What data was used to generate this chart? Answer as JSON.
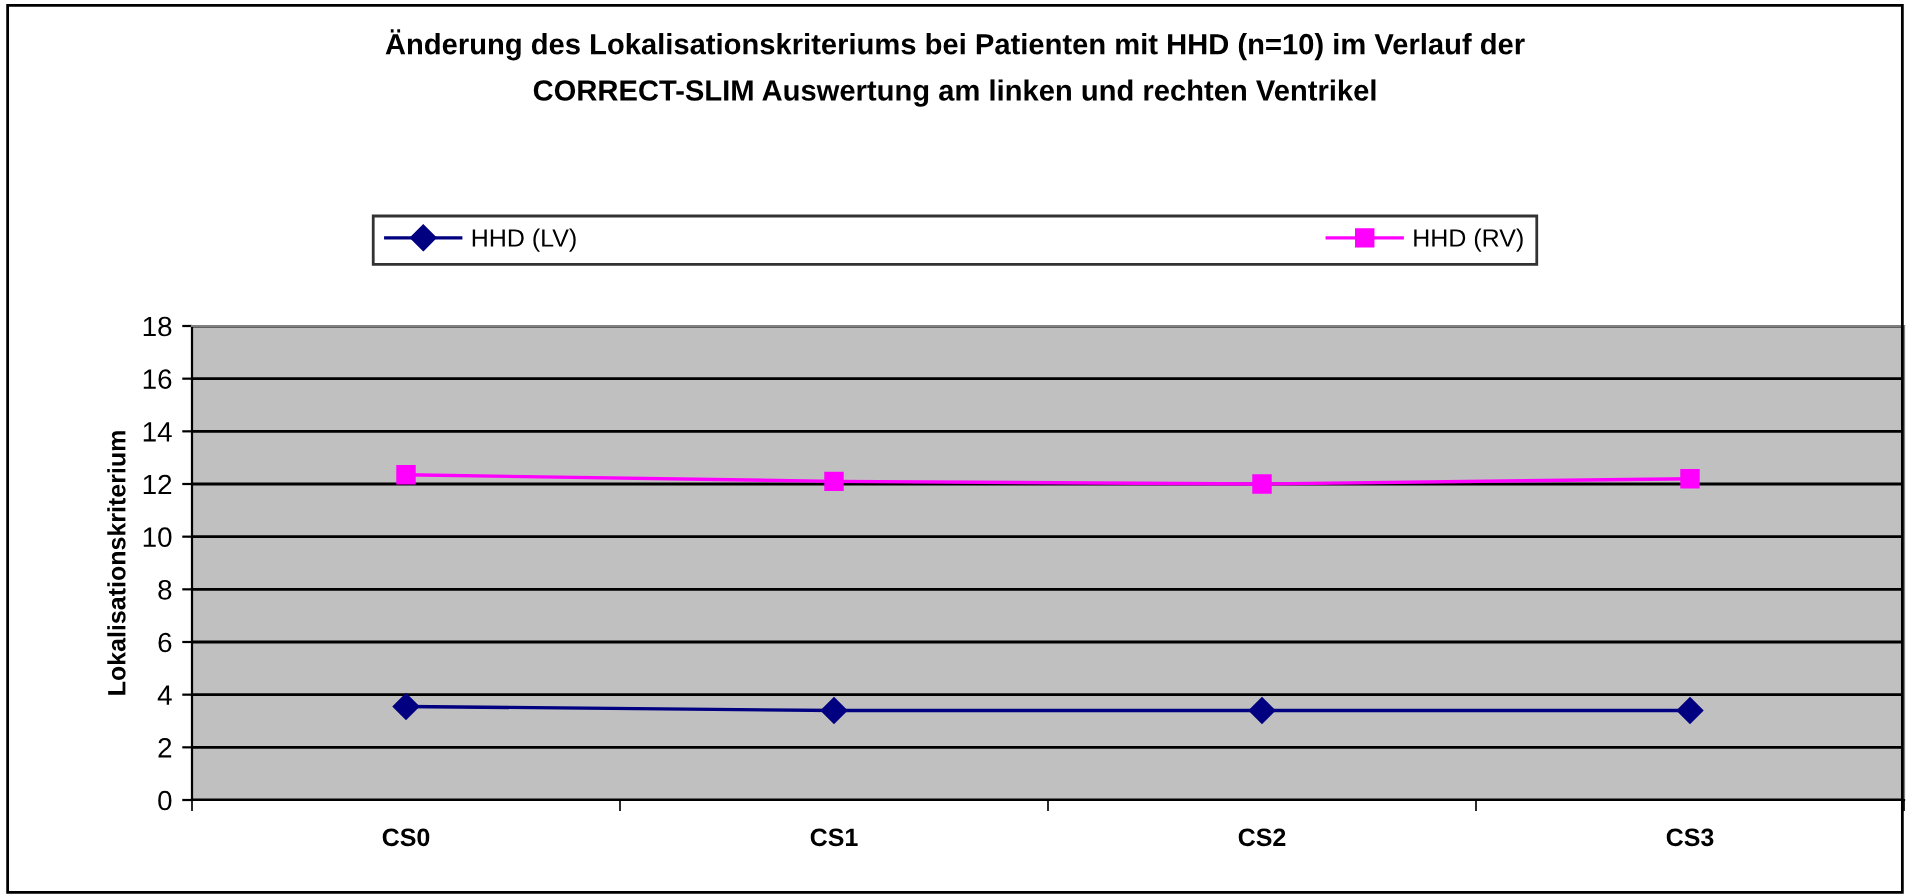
{
  "chart_data": {
    "type": "line",
    "title": "Änderung des Lokalisationskriteriums bei Patienten mit HHD (n=10) im Verlauf der\nCORRECT-SLIM Auswertung am linken und rechten Ventrikel",
    "ylabel": "Lokalisationskriterium",
    "categories": [
      "CS0",
      "CS1",
      "CS2",
      "CS3"
    ],
    "series": [
      {
        "name": "HHD (LV)",
        "color": "#000080",
        "marker": "diamond",
        "values": [
          3.55,
          3.4,
          3.4,
          3.4
        ]
      },
      {
        "name": "HHD (RV)",
        "color": "#ff00ff",
        "marker": "square",
        "values": [
          12.35,
          12.1,
          12.0,
          12.2
        ]
      }
    ],
    "ylim": [
      0,
      18
    ],
    "yticks": [
      0,
      2,
      4,
      6,
      8,
      10,
      12,
      14,
      16,
      18
    ],
    "grid": "y",
    "legend": "top"
  }
}
